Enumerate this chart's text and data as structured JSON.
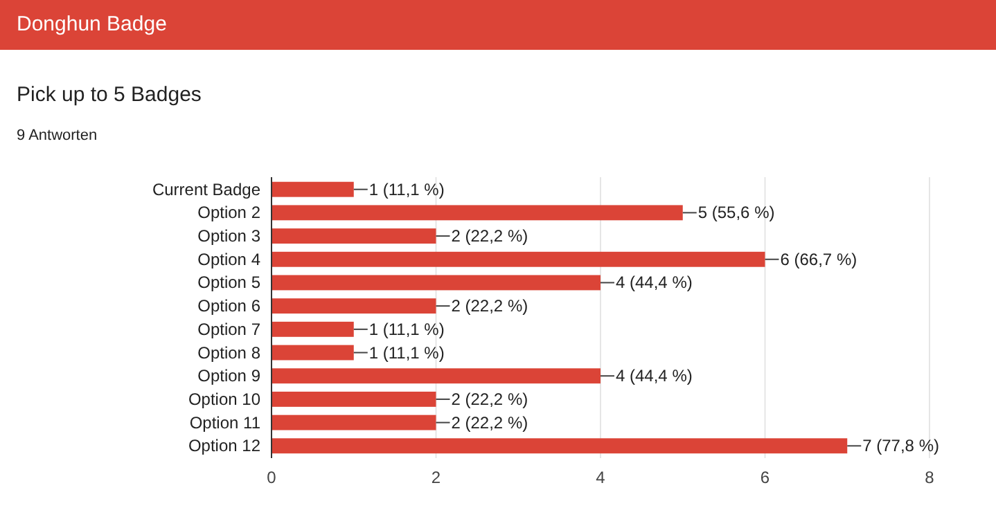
{
  "chart_data": {
    "type": "bar",
    "orientation": "horizontal",
    "title": "Donghun Badge",
    "subtitle": "Pick up to 5 Badges",
    "annotations": [
      "9 Antworten"
    ],
    "categories": [
      "Current Badge",
      "Option 2",
      "Option 3",
      "Option 4",
      "Option 5",
      "Option 6",
      "Option 7",
      "Option 8",
      "Option 9",
      "Option 10",
      "Option 11",
      "Option 12"
    ],
    "values": [
      1,
      5,
      2,
      6,
      4,
      2,
      1,
      1,
      4,
      2,
      2,
      7
    ],
    "value_labels": [
      "1 (11,1 %)",
      "5 (55,6 %)",
      "2 (22,2 %)",
      "6 (66,7 %)",
      "4 (44,4 %)",
      "2 (22,2 %)",
      "1 (11,1 %)",
      "1 (11,1 %)",
      "4 (44,4 %)",
      "2 (22,2 %)",
      "2 (22,2 %)",
      "7 (77,8 %)"
    ],
    "color": "#db4437",
    "xlim": [
      0,
      8
    ],
    "xticks": [
      0,
      2,
      4,
      6,
      8
    ],
    "grid": "x"
  }
}
